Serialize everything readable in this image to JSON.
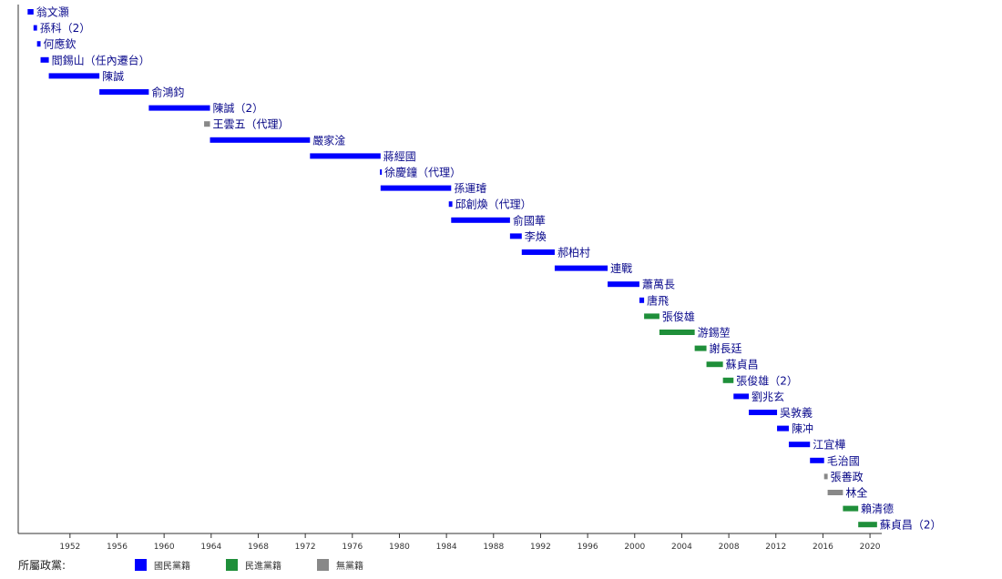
{
  "chart_data": {
    "type": "bar",
    "orientation": "horizontal-timeline",
    "x_range": [
      1947.6,
      2021.0
    ],
    "x_ticks": [
      1952,
      1956,
      1960,
      1964,
      1968,
      1972,
      1976,
      1980,
      1984,
      1988,
      1992,
      1996,
      2000,
      2004,
      2008,
      2012,
      2016,
      2020
    ],
    "grid": false,
    "colors": {
      "kmt": "#0000ff",
      "dpp": "#1f8f3a",
      "none": "#888888"
    },
    "bars": [
      {
        "label": "翁文灝",
        "start": 1948.4,
        "end": 1948.9,
        "party": "kmt"
      },
      {
        "label": "孫科（2）",
        "start": 1948.9,
        "end": 1949.2,
        "party": "kmt"
      },
      {
        "label": "何應欽",
        "start": 1949.2,
        "end": 1949.5,
        "party": "kmt"
      },
      {
        "label": "閻錫山（任內遷台）",
        "start": 1949.5,
        "end": 1950.2,
        "party": "kmt"
      },
      {
        "label": "陳誠",
        "start": 1950.2,
        "end": 1954.5,
        "party": "kmt"
      },
      {
        "label": "俞鴻鈞",
        "start": 1954.5,
        "end": 1958.7,
        "party": "kmt"
      },
      {
        "label": "陳誠（2）",
        "start": 1958.7,
        "end": 1963.9,
        "party": "kmt"
      },
      {
        "label": "王雲五（代理）",
        "start": 1963.4,
        "end": 1963.9,
        "party": "none"
      },
      {
        "label": "嚴家淦",
        "start": 1963.9,
        "end": 1972.4,
        "party": "kmt"
      },
      {
        "label": "蔣經國",
        "start": 1972.4,
        "end": 1978.4,
        "party": "kmt"
      },
      {
        "label": "徐慶鐘（代理）",
        "start": 1978.35,
        "end": 1978.45,
        "party": "kmt"
      },
      {
        "label": "孫運璿",
        "start": 1978.4,
        "end": 1984.4,
        "party": "kmt"
      },
      {
        "label": "邱創煥（代理）",
        "start": 1984.2,
        "end": 1984.5,
        "party": "kmt"
      },
      {
        "label": "俞國華",
        "start": 1984.4,
        "end": 1989.4,
        "party": "kmt"
      },
      {
        "label": "李煥",
        "start": 1989.4,
        "end": 1990.4,
        "party": "kmt"
      },
      {
        "label": "郝柏村",
        "start": 1990.4,
        "end": 1993.2,
        "party": "kmt"
      },
      {
        "label": "連戰",
        "start": 1993.2,
        "end": 1997.7,
        "party": "kmt"
      },
      {
        "label": "蕭萬長",
        "start": 1997.7,
        "end": 2000.4,
        "party": "kmt"
      },
      {
        "label": "唐飛",
        "start": 2000.4,
        "end": 2000.8,
        "party": "kmt"
      },
      {
        "label": "張俊雄",
        "start": 2000.8,
        "end": 2002.1,
        "party": "dpp"
      },
      {
        "label": "游錫堃",
        "start": 2002.1,
        "end": 2005.1,
        "party": "dpp"
      },
      {
        "label": "謝長廷",
        "start": 2005.1,
        "end": 2006.1,
        "party": "dpp"
      },
      {
        "label": "蘇貞昌",
        "start": 2006.1,
        "end": 2007.5,
        "party": "dpp"
      },
      {
        "label": "張俊雄（2）",
        "start": 2007.5,
        "end": 2008.4,
        "party": "dpp"
      },
      {
        "label": "劉兆玄",
        "start": 2008.4,
        "end": 2009.7,
        "party": "kmt"
      },
      {
        "label": "吳敦義",
        "start": 2009.7,
        "end": 2012.1,
        "party": "kmt"
      },
      {
        "label": "陳冲",
        "start": 2012.1,
        "end": 2013.1,
        "party": "kmt"
      },
      {
        "label": "江宜樺",
        "start": 2013.1,
        "end": 2014.9,
        "party": "kmt"
      },
      {
        "label": "毛治國",
        "start": 2014.9,
        "end": 2016.1,
        "party": "kmt"
      },
      {
        "label": "張善政",
        "start": 2016.1,
        "end": 2016.4,
        "party": "none"
      },
      {
        "label": "林全",
        "start": 2016.4,
        "end": 2017.7,
        "party": "none"
      },
      {
        "label": "賴清德",
        "start": 2017.7,
        "end": 2019.0,
        "party": "dpp"
      },
      {
        "label": "蘇貞昌（2）",
        "start": 2019.0,
        "end": 2020.6,
        "party": "dpp"
      }
    ],
    "legend": {
      "title": "所屬政黨:",
      "placement": "bottom-left",
      "items": [
        {
          "party": "kmt",
          "label": "國民黨籍"
        },
        {
          "party": "dpp",
          "label": "民進黨籍"
        },
        {
          "party": "none",
          "label": "無黨籍"
        }
      ]
    }
  }
}
